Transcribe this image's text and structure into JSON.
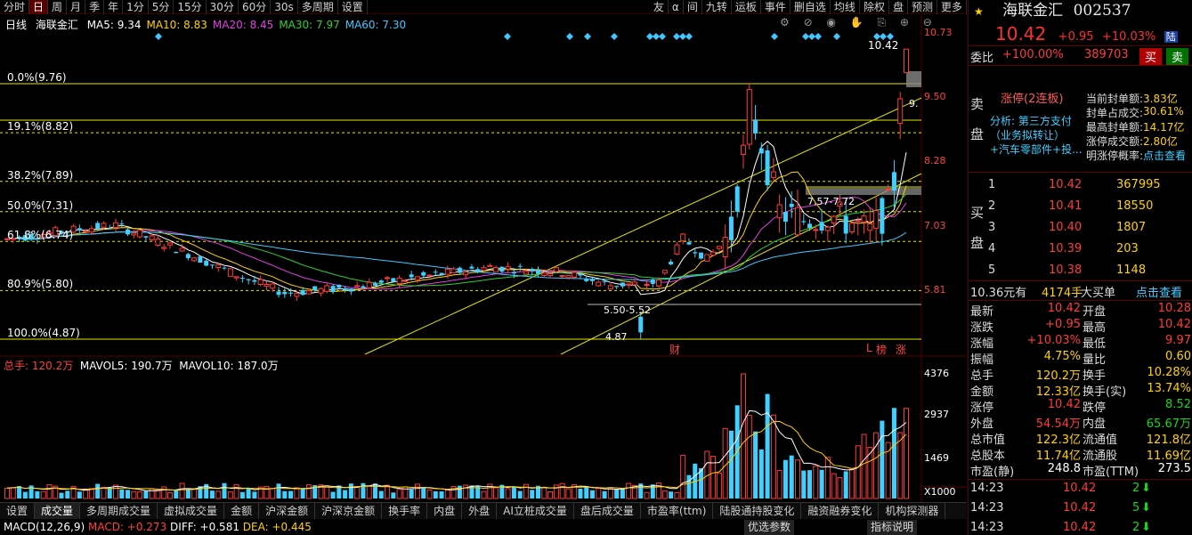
{
  "toolbar": {
    "left": [
      "分时",
      "日",
      "周",
      "月",
      "季",
      "年",
      "1分",
      "5分",
      "15分",
      "30分",
      "60分",
      "30s",
      "多周期",
      "设置"
    ],
    "active": "日",
    "right": [
      "友",
      "α",
      "间",
      "九转",
      "运板",
      "事件",
      "删自选",
      "均线",
      "除权",
      "盘",
      "预测",
      "更多"
    ]
  },
  "legend": {
    "period": "日线",
    "name": "海联金汇",
    "ma": [
      {
        "label": "MA5: 9.34",
        "color": "#ffffff"
      },
      {
        "label": "MA10: 8.83",
        "color": "#ffd200"
      },
      {
        "label": "MA20: 8.45",
        "color": "#e040e0"
      },
      {
        "label": "MA30: 7.97",
        "color": "#30d030"
      },
      {
        "label": "MA60: 7.30",
        "color": "#3ec8ff"
      }
    ]
  },
  "price_axis": [
    "10.73",
    "9.50",
    "8.28",
    "7.03",
    "5.81"
  ],
  "fib_levels": [
    {
      "label": "0.0%(9.76)",
      "price": 9.76,
      "style": "solid"
    },
    {
      "label": "19.1%(8.82)",
      "price": 8.82,
      "style": "dash"
    },
    {
      "label": "38.2%(7.89)",
      "price": 7.89,
      "style": "dash"
    },
    {
      "label": "50.0%(7.31)",
      "price": 7.31,
      "style": "dash"
    },
    {
      "label": "61.8%(6.74)",
      "price": 6.74,
      "style": "dash"
    },
    {
      "label": "80.9%(5.80)",
      "price": 5.8,
      "style": "dash"
    },
    {
      "label": "100.0%(4.87)",
      "price": 4.87,
      "style": "solid"
    }
  ],
  "annotations": {
    "hi_label": "10.42",
    "zone_a": "7.57-7.72",
    "zone_b": "5.50-5.52",
    "low_label": "4.87",
    "cai": "财",
    "l": "L",
    "bang": "榜",
    "zhang": "涨",
    "nine": "9."
  },
  "volume": {
    "title": "总手: 120.2万",
    "mavol5": "MAVOL5: 190.7万",
    "mavol10": "MAVOL10: 187.0万",
    "axis": [
      "4376",
      "2937",
      "1469",
      "X1000"
    ]
  },
  "bottom_tabs": [
    "设置",
    "成交量",
    "多周期成交量",
    "虚拟成交量",
    "金额",
    "沪深金额",
    "沪深京金额",
    "换手率",
    "内盘",
    "外盘",
    "AI立桩成交量",
    "盘后成交量",
    "市盈率(ttm)",
    "陆股通持股变化",
    "融资融券变化",
    "机构探测器"
  ],
  "bottom_active": "成交量",
  "macd": {
    "title": "MACD(12,26,9)",
    "macd": "MACD: +0.273",
    "diff": "DIFF: +0.581",
    "dea": "DEA: +0.445",
    "btn1": "优选参数",
    "btn2": "指标说明"
  },
  "panel": {
    "name": "海联金汇",
    "code": "002537",
    "price": "10.42",
    "change": "+0.95",
    "pct": "+10.03%",
    "tag": "陆",
    "weibi_label": "委比",
    "weibi_pct": "+100.00%",
    "weibi_val": "389703",
    "buy_btn": "买",
    "sell_btn": "卖",
    "sell_side": "卖盘",
    "limit_title": "涨停(2连板)",
    "analysis": "分析: 第三方支付（业务拟转让）+汽车零部件+投...",
    "seal_info": [
      {
        "k": "当前封单额:",
        "v": "3.83亿"
      },
      {
        "k": "封单占成交:",
        "v": "30.61%"
      },
      {
        "k": "最高封单额:",
        "v": "14.17亿"
      },
      {
        "k": "涨停成交额:",
        "v": "2.80亿"
      },
      {
        "k": "明涨停概率:",
        "v": "点击查看"
      }
    ],
    "buy_side": "买盘",
    "bids": [
      {
        "n": "1",
        "p": "10.42",
        "v": "367995"
      },
      {
        "n": "2",
        "p": "10.41",
        "v": "18550"
      },
      {
        "n": "3",
        "p": "10.40",
        "v": "1807"
      },
      {
        "n": "4",
        "p": "10.39",
        "v": "203"
      },
      {
        "n": "5",
        "p": "10.38",
        "v": "1148"
      }
    ],
    "big_order": {
      "price": "10.36元有",
      "vol": "4174手",
      "label": "大买单",
      "link": "点击查看"
    },
    "stats": [
      {
        "k1": "最新",
        "v1": "10.42",
        "c1": "red",
        "k2": "开盘",
        "v2": "10.28",
        "c2": "red"
      },
      {
        "k1": "涨跌",
        "v1": "+0.95",
        "c1": "red",
        "k2": "最高",
        "v2": "10.42",
        "c2": "red"
      },
      {
        "k1": "涨幅",
        "v1": "+10.03%",
        "c1": "red",
        "k2": "最低",
        "v2": "9.97",
        "c2": "red"
      },
      {
        "k1": "振幅",
        "v1": "4.75%",
        "c1": "yellow",
        "k2": "量比",
        "v2": "0.60",
        "c2": "yellow"
      },
      {
        "k1": "总手",
        "v1": "120.2万",
        "c1": "yellow",
        "k2": "换手",
        "v2": "10.28%",
        "c2": "yellow"
      },
      {
        "k1": "金额",
        "v1": "12.33亿",
        "c1": "yellow",
        "k2": "换手(实)",
        "v2": "13.74%",
        "c2": "yellow"
      },
      {
        "k1": "涨停",
        "v1": "10.42",
        "c1": "red",
        "k2": "跌停",
        "v2": "8.52",
        "c2": "green"
      },
      {
        "k1": "外盘",
        "v1": "54.54万",
        "c1": "red",
        "k2": "内盘",
        "v2": "65.67万",
        "c2": "green"
      },
      {
        "k1": "总市值",
        "v1": "122.3亿",
        "c1": "yellow",
        "k2": "流通值",
        "v2": "121.8亿",
        "c2": "yellow"
      },
      {
        "k1": "总股本",
        "v1": "11.74亿",
        "c1": "yellow",
        "k2": "流通股",
        "v2": "11.69亿",
        "c2": "yellow"
      },
      {
        "k1": "市盈(静)",
        "v1": "248.8",
        "c1": "white",
        "k2": "市盈(TTM)",
        "v2": "273.5",
        "c2": "white"
      }
    ],
    "ticks": [
      {
        "t": "14:23",
        "p": "10.42",
        "v": "2"
      },
      {
        "t": "14:23",
        "p": "10.42",
        "v": "5"
      },
      {
        "t": "14:23",
        "p": "10.42",
        "v": "2"
      }
    ]
  }
}
